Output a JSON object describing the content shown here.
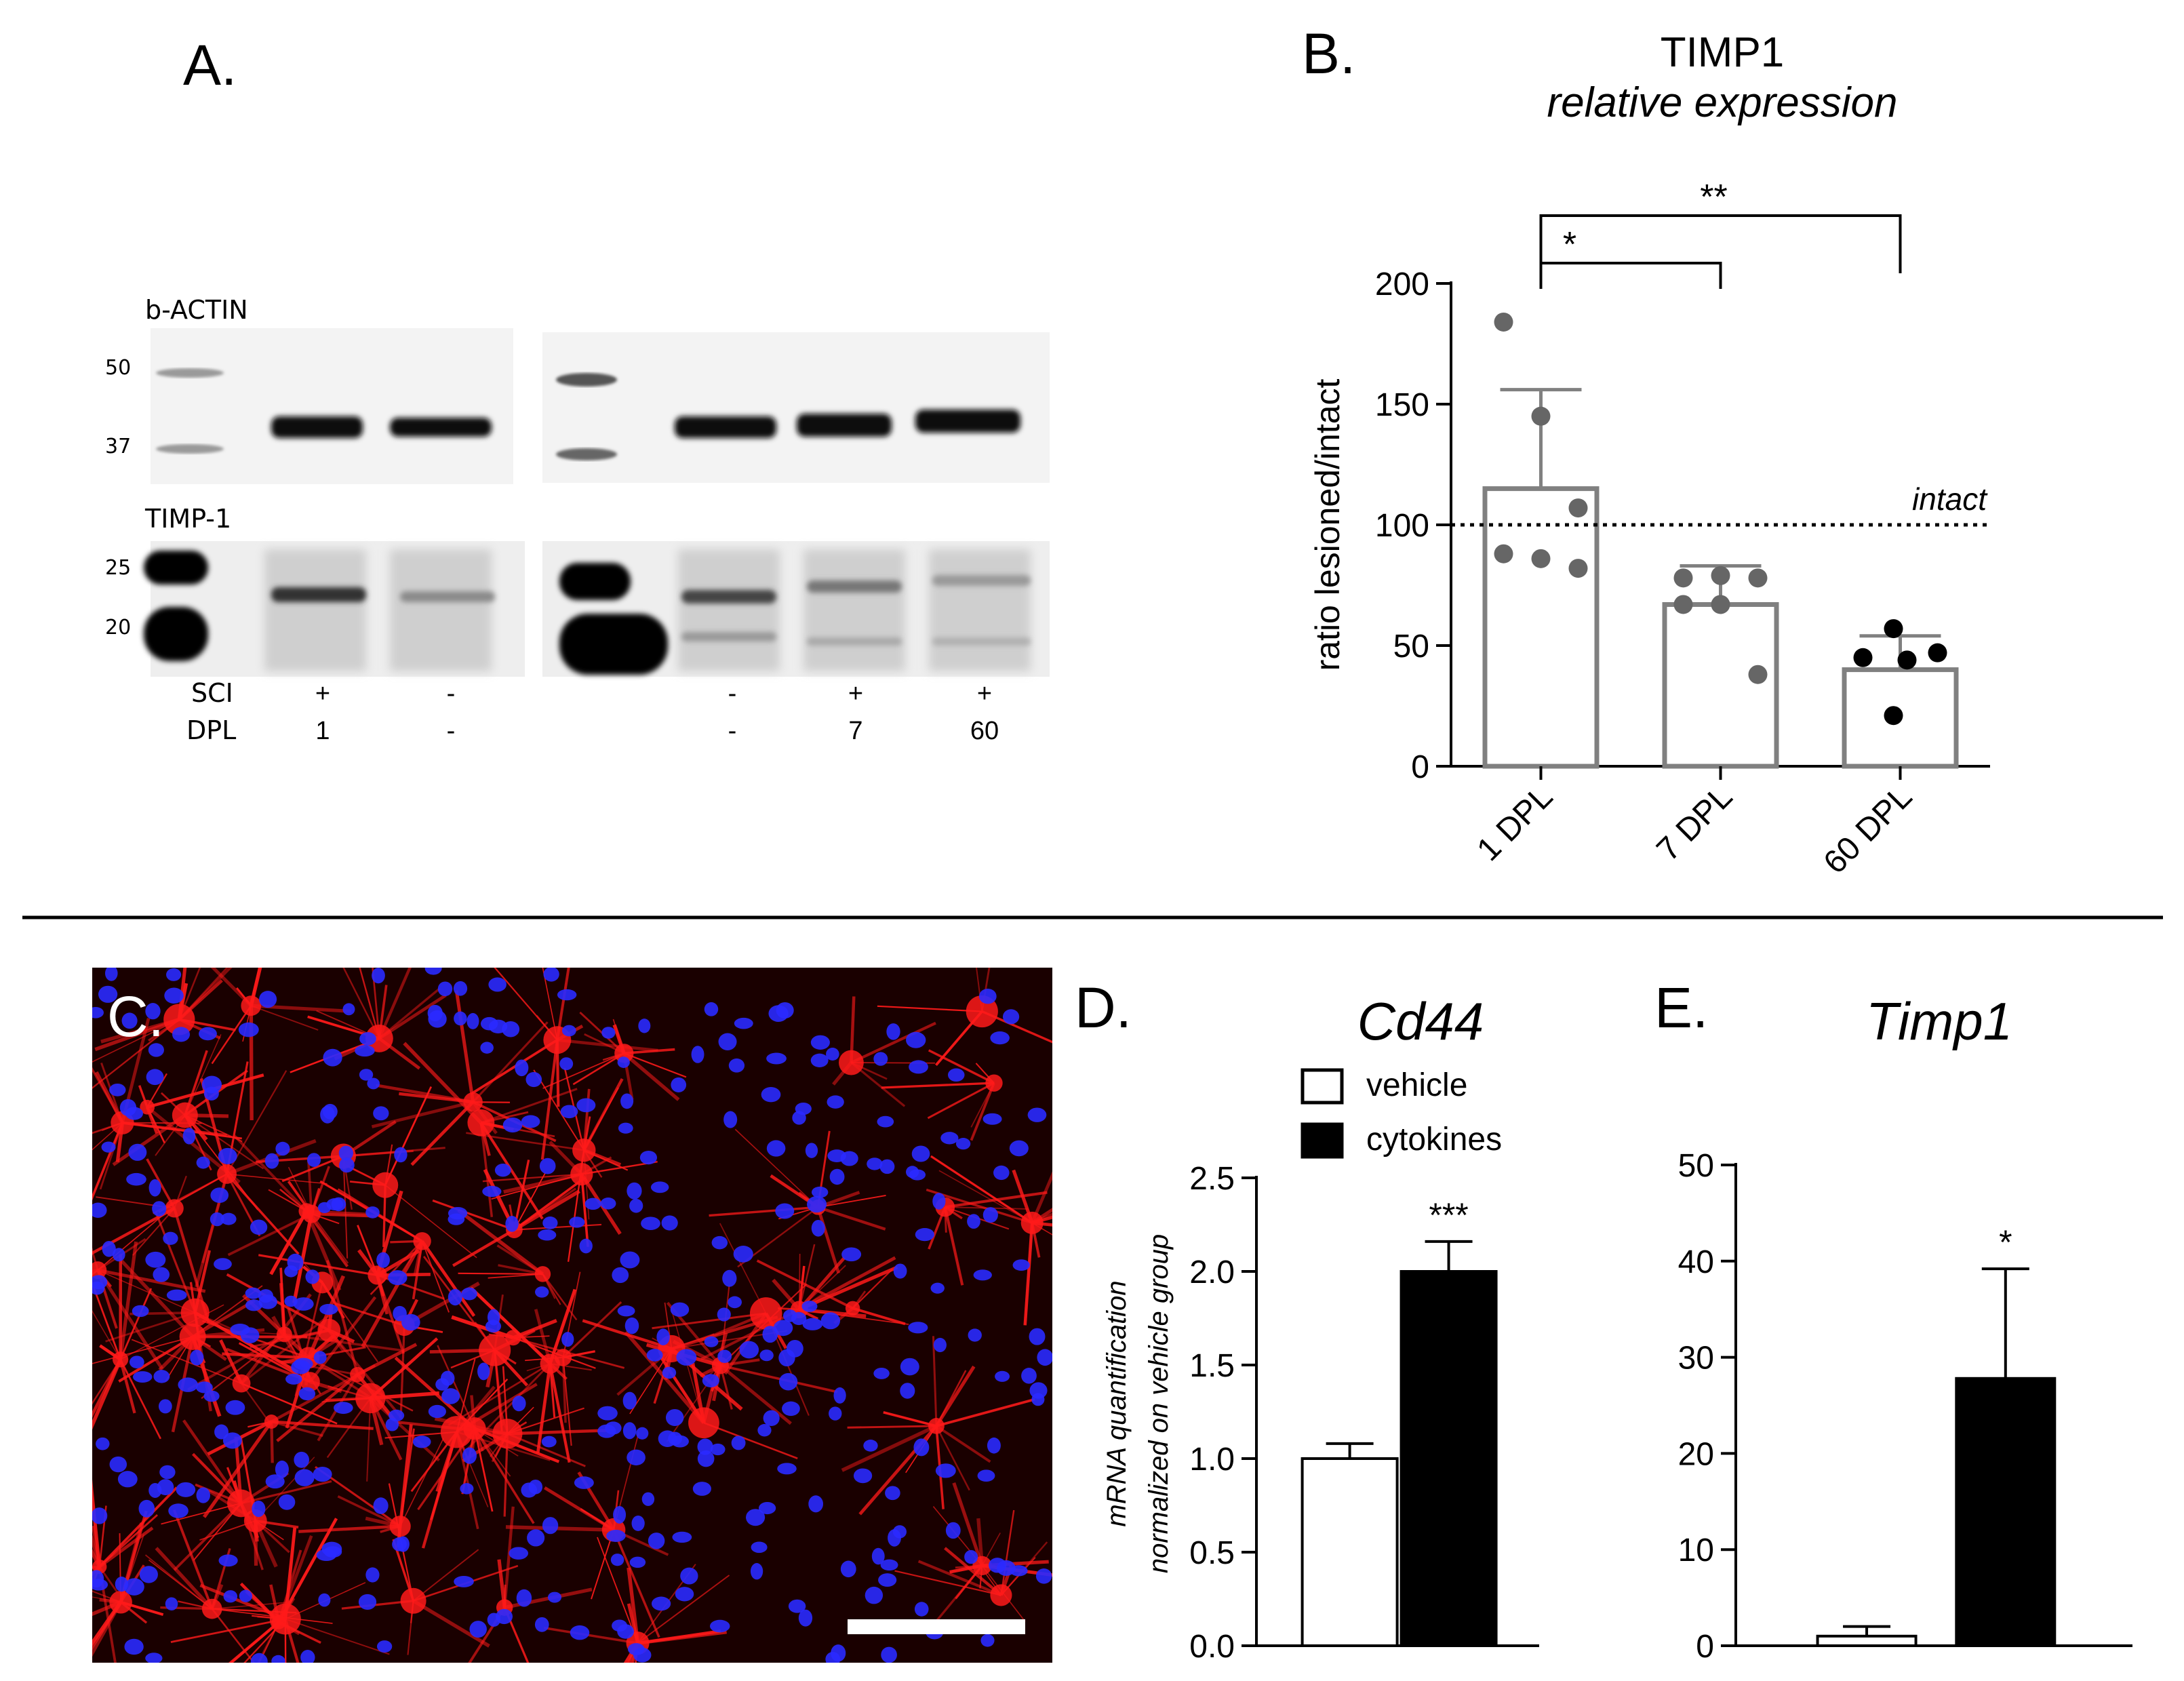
{
  "panels": {
    "a": {
      "letter": "A."
    },
    "b": {
      "letter": "B."
    },
    "c": {
      "letter": "C."
    },
    "d": {
      "letter": "D."
    },
    "e": {
      "letter": "E."
    }
  },
  "blot": {
    "actin_label": "b-ACTIN",
    "timp_label": "TIMP-1",
    "actin_markers": [
      "50",
      "37"
    ],
    "timp_markers": [
      "25",
      "20"
    ],
    "row_labels": [
      "SCI",
      "DPL"
    ],
    "lanes": [
      {
        "sci": "+",
        "dpl": "1"
      },
      {
        "sci": "-",
        "dpl": "-"
      },
      {
        "sci": "-",
        "dpl": "-"
      },
      {
        "sci": "+",
        "dpl": "7"
      },
      {
        "sci": "+",
        "dpl": "60"
      }
    ]
  },
  "micrograph": {
    "stain_colors": {
      "background": "#1a0000",
      "astrocytes": "#ff1a1a",
      "nuclei": "#2a2aff"
    }
  },
  "chart_data": [
    {
      "type": "bar",
      "panel": "B",
      "title": "TIMP1",
      "subtitle": "relative expression",
      "ylabel": "ratio lesioned/intact",
      "ylim": [
        0,
        200
      ],
      "yticks": [
        "0",
        "50",
        "100",
        "150",
        "200"
      ],
      "categories": [
        "1 DPL",
        "7 DPL",
        "60 DPL"
      ],
      "values": [
        115,
        67,
        40
      ],
      "error": [
        41,
        16,
        14
      ],
      "points": [
        [
          184,
          145,
          107,
          88,
          86,
          82
        ],
        [
          78,
          79,
          78,
          67,
          67,
          38
        ],
        [
          57,
          45,
          47,
          44,
          21
        ]
      ],
      "point_colors": [
        "#666666",
        "#666666",
        "#000000"
      ],
      "reference_line": {
        "value": 100,
        "label": "intact"
      },
      "significance": [
        {
          "from": "1 DPL",
          "to": "7 DPL",
          "label": "*"
        },
        {
          "from": "1 DPL",
          "to": "60 DPL",
          "label": "**"
        }
      ]
    },
    {
      "type": "bar",
      "panel": "D",
      "title": "Cd44",
      "ylabel_line1": "mRNA quantification",
      "ylabel_line2": "normalized on vehicle group",
      "ylim": [
        0,
        2.5
      ],
      "yticks": [
        "0.0",
        "0.5",
        "1.0",
        "1.5",
        "2.0",
        "2.5"
      ],
      "categories": [
        "vehicle",
        "cytokines"
      ],
      "values": [
        1.0,
        2.0
      ],
      "error": [
        0.08,
        0.16
      ],
      "colors": [
        "#ffffff",
        "#000000"
      ],
      "significance_label": "***",
      "legend": [
        {
          "name": "vehicle",
          "color": "#ffffff"
        },
        {
          "name": "cytokines",
          "color": "#000000"
        }
      ]
    },
    {
      "type": "bar",
      "panel": "E",
      "title": "Timp1",
      "ylim": [
        0,
        50
      ],
      "yticks": [
        "0",
        "10",
        "20",
        "30",
        "40",
        "50"
      ],
      "categories": [
        "vehicle",
        "cytokines"
      ],
      "values": [
        1.0,
        27.8
      ],
      "error": [
        1.0,
        11.4
      ],
      "colors": [
        "#ffffff",
        "#000000"
      ],
      "significance_label": "*"
    }
  ]
}
